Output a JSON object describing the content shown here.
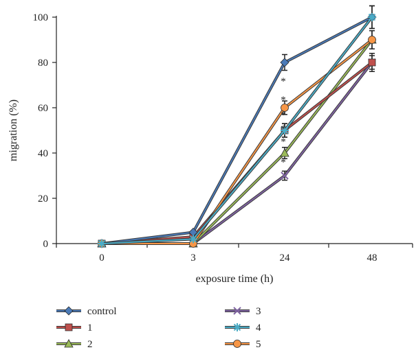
{
  "chart_data": {
    "type": "line",
    "title": "",
    "xlabel": "exposure time (h)",
    "ylabel": "migration (%)",
    "categories": [
      "0",
      "3",
      "24",
      "48"
    ],
    "ylim": [
      0,
      100
    ],
    "yticks": [
      0,
      20,
      40,
      60,
      80,
      100
    ],
    "legend_position": "bottom",
    "series": [
      {
        "name": "control",
        "marker": "diamond",
        "color": "#4a7ab8",
        "values": [
          0,
          5,
          80,
          100
        ],
        "errors": [
          0,
          0,
          3.5,
          5
        ]
      },
      {
        "name": "1",
        "marker": "square",
        "color": "#c0504d",
        "values": [
          0,
          3,
          50,
          80
        ],
        "errors": [
          0,
          0,
          3,
          4
        ]
      },
      {
        "name": "2",
        "marker": "triangle",
        "color": "#9bbb59",
        "values": [
          0,
          0,
          40,
          90
        ],
        "errors": [
          0,
          0,
          2.5,
          4
        ]
      },
      {
        "name": "3",
        "marker": "x",
        "color": "#8064a2",
        "values": [
          0,
          0,
          30,
          80
        ],
        "errors": [
          0,
          0,
          2,
          3
        ]
      },
      {
        "name": "4",
        "marker": "star",
        "color": "#4bacc6",
        "values": [
          0,
          2,
          50,
          100
        ],
        "errors": [
          0,
          0,
          3,
          5
        ]
      },
      {
        "name": "5",
        "marker": "circle",
        "color": "#f79646",
        "values": [
          0,
          0,
          60,
          90
        ],
        "errors": [
          0,
          0,
          3,
          4
        ]
      }
    ],
    "annotations": [
      "*",
      "*",
      "*",
      "*",
      "*",
      "*"
    ]
  }
}
